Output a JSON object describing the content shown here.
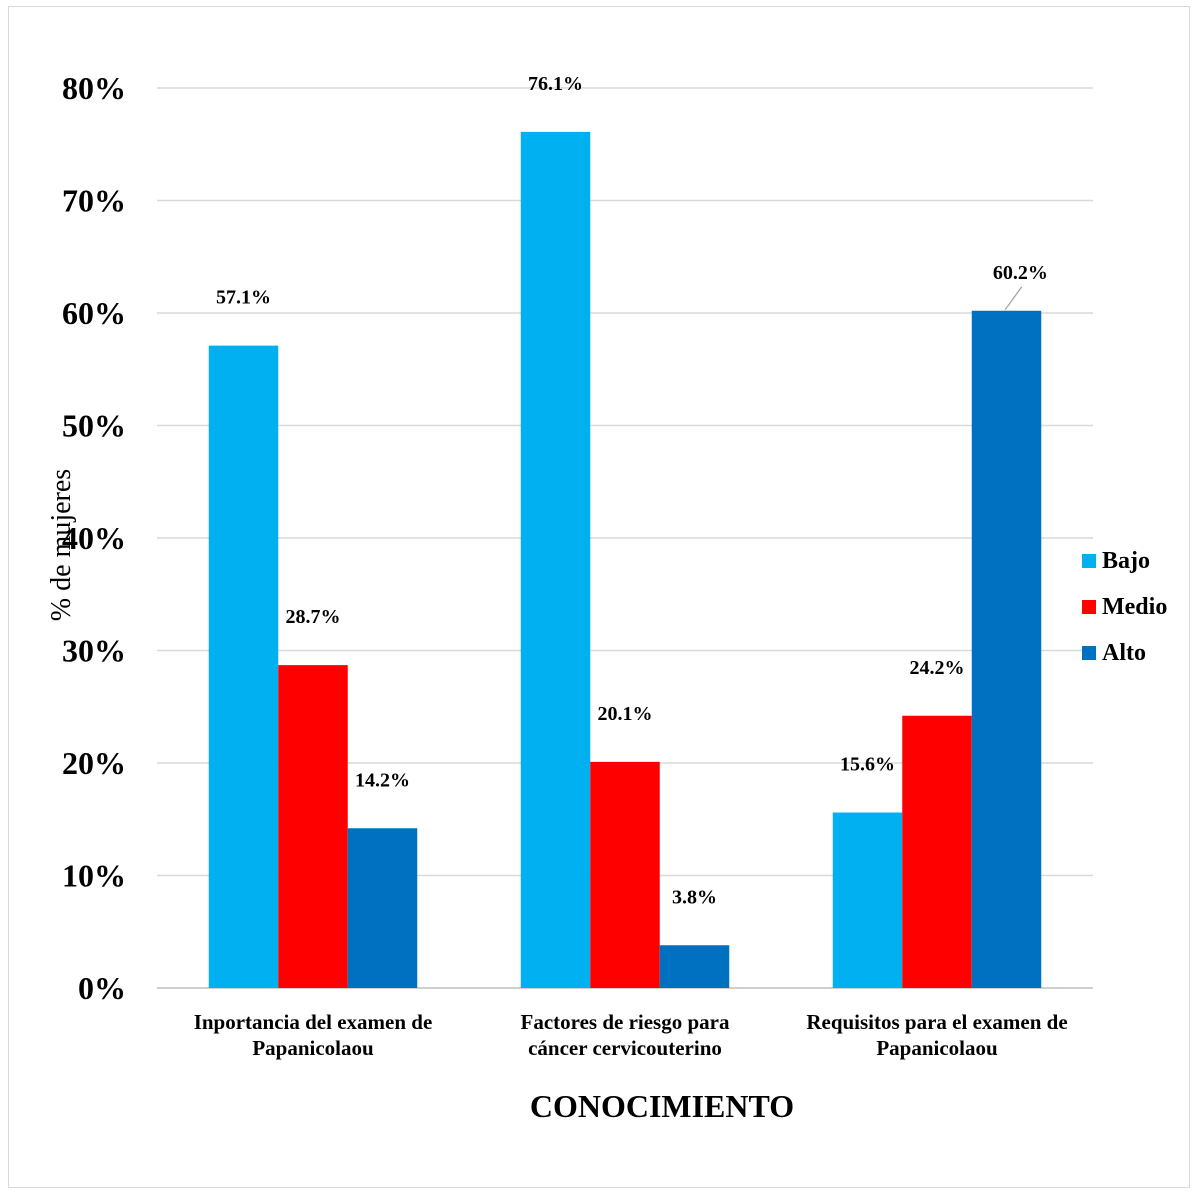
{
  "chart_data": {
    "type": "bar",
    "title": "",
    "xlabel": "CONOCIMIENTO",
    "ylabel": "% de mujeres",
    "ylim": [
      0,
      80
    ],
    "y_ticks": [
      "0%",
      "10%",
      "20%",
      "30%",
      "40%",
      "50%",
      "60%",
      "70%",
      "80%"
    ],
    "grid": true,
    "legend_position": "right",
    "categories": [
      [
        "Inportancia del examen de",
        "Papanicolaou"
      ],
      [
        "Factores de riesgo para",
        "cáncer cervicouterino"
      ],
      [
        "Requisitos para el examen de",
        "Papanicolaou"
      ]
    ],
    "series": [
      {
        "name": "Bajo",
        "color": "#00b0f0",
        "values": [
          57.1,
          76.1,
          15.6
        ],
        "labels": [
          "57.1%",
          "76.1%",
          "15.6%"
        ]
      },
      {
        "name": "Medio",
        "color": "#ff0000",
        "values": [
          28.7,
          20.1,
          24.2
        ],
        "labels": [
          "28.7%",
          "20.1%",
          "24.2%"
        ]
      },
      {
        "name": "Alto",
        "color": "#0070c0",
        "values": [
          14.2,
          3.8,
          60.2
        ],
        "labels": [
          "14.2%",
          "3.8%",
          "60.2%"
        ]
      }
    ]
  }
}
